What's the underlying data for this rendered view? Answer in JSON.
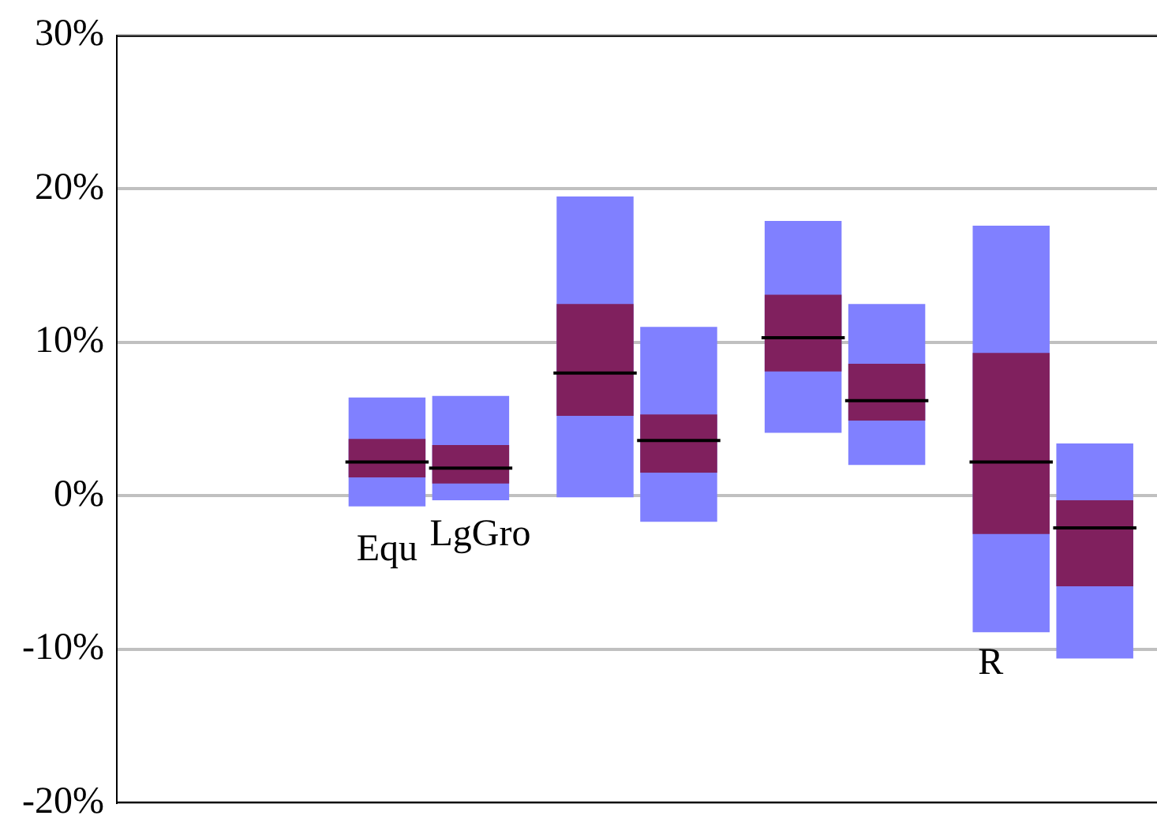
{
  "chart_data": {
    "type": "box",
    "categories": [
      null,
      null,
      null,
      null,
      null
    ],
    "ylim": [
      -20,
      30
    ],
    "yticks": [
      {
        "value": -20,
        "label": "-20%"
      },
      {
        "value": -10,
        "label": "-10%"
      },
      {
        "value": 0,
        "label": "0%"
      },
      {
        "value": 10,
        "label": "10%"
      },
      {
        "value": 20,
        "label": "20%"
      },
      {
        "value": 30,
        "label": "30%"
      }
    ],
    "grid": "y",
    "tick_labels": "y",
    "annotations": [
      "Equ",
      "LgGro",
      "R"
    ],
    "series": [
      {
        "color": "#80205e",
        "boxes": [
          null,
          {
            "low": -0.7,
            "q1": 1.2,
            "median": 2.2,
            "q3": 3.7,
            "high": 6.4
          },
          {
            "low": -0.1,
            "q1": 5.2,
            "median": 8.0,
            "q3": 12.5,
            "high": 19.5
          },
          {
            "low": 4.1,
            "q1": 8.1,
            "median": 10.3,
            "q3": 13.1,
            "high": 17.9
          },
          {
            "low": -8.9,
            "q1": -2.5,
            "median": 2.2,
            "q3": 9.3,
            "high": 17.6
          }
        ]
      },
      {
        "color": "#80205e",
        "boxes": [
          null,
          {
            "low": -0.3,
            "q1": 0.8,
            "median": 1.8,
            "q3": 3.3,
            "high": 6.5
          },
          {
            "low": -1.7,
            "q1": 1.5,
            "median": 3.6,
            "q3": 5.3,
            "high": 11.0
          },
          {
            "low": 2.0,
            "q1": 4.9,
            "median": 6.2,
            "q3": 8.6,
            "high": 12.5
          },
          {
            "low": -10.6,
            "q1": -5.9,
            "median": -2.1,
            "q3": -0.3,
            "high": 3.4
          }
        ]
      }
    ]
  }
}
